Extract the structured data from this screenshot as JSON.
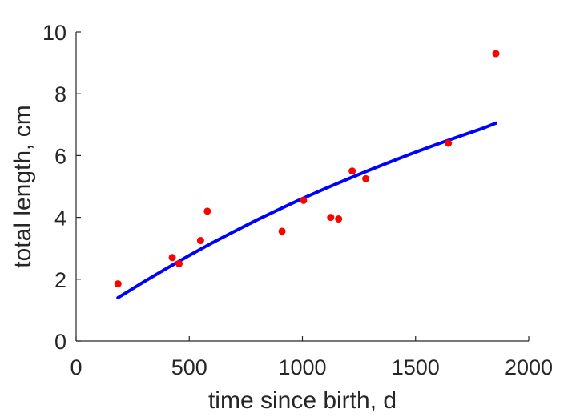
{
  "chart_data": {
    "type": "scatter",
    "title": "",
    "xlabel": "time since birth, d",
    "ylabel": "total length, cm",
    "xlim": [
      0,
      2000
    ],
    "ylim": [
      0,
      10
    ],
    "xticks": [
      0,
      500,
      1000,
      1500,
      2000
    ],
    "yticks": [
      0,
      2,
      4,
      6,
      8,
      10
    ],
    "grid": false,
    "legend": "none",
    "colors": {
      "points": "#ff0000",
      "fit": "#0000ff",
      "axis": "#262626"
    },
    "series": [
      {
        "type": "scatter",
        "x": [
          185,
          425,
          455,
          550,
          580,
          910,
          1005,
          1125,
          1160,
          1220,
          1280,
          1645,
          1855
        ],
        "y": [
          1.85,
          2.7,
          2.5,
          3.25,
          4.2,
          3.55,
          4.55,
          4.0,
          3.95,
          5.5,
          5.25,
          6.4,
          9.3
        ]
      },
      {
        "type": "line",
        "x": [
          185,
          300,
          400,
          500,
          600,
          700,
          800,
          900,
          1000,
          1100,
          1200,
          1300,
          1400,
          1500,
          1600,
          1700,
          1800,
          1855
        ],
        "y": [
          1.4,
          1.92,
          2.35,
          2.77,
          3.17,
          3.55,
          3.92,
          4.27,
          4.61,
          4.93,
          5.24,
          5.54,
          5.83,
          6.11,
          6.38,
          6.64,
          6.89,
          7.05
        ]
      }
    ]
  }
}
